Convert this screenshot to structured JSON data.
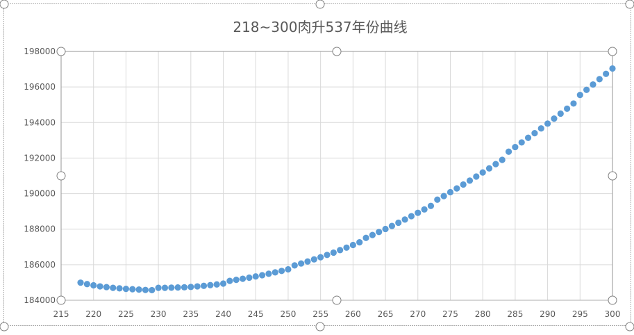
{
  "chart_data": {
    "type": "scatter",
    "title": "218~300肉升537年份曲线",
    "xlabel": "",
    "ylabel": "",
    "xlim": [
      215,
      300
    ],
    "ylim": [
      184000,
      198000
    ],
    "xticks": [
      "215",
      "220",
      "225",
      "230",
      "235",
      "240",
      "245",
      "250",
      "255",
      "260",
      "265",
      "270",
      "275",
      "280",
      "285",
      "290",
      "295",
      "300"
    ],
    "yticks": [
      "184000",
      "186000",
      "188000",
      "190000",
      "192000",
      "194000",
      "196000",
      "198000"
    ],
    "grid": true,
    "legend": "none",
    "marker_color": "#5b9bd5",
    "series": [
      {
        "x": [
          218,
          219,
          220,
          221,
          222,
          223,
          224,
          225,
          226,
          227,
          228,
          229,
          230,
          231,
          232,
          233,
          234,
          235,
          236,
          237,
          238,
          239,
          240,
          241,
          242,
          243,
          244,
          245,
          246,
          247,
          248,
          249,
          250,
          251,
          252,
          253,
          254,
          255,
          256,
          257,
          258,
          259,
          260,
          261,
          262,
          263,
          264,
          265,
          266,
          267,
          268,
          269,
          270,
          271,
          272,
          273,
          274,
          275,
          276,
          277,
          278,
          279,
          280,
          281,
          282,
          283,
          284,
          285,
          286,
          287,
          288,
          289,
          290,
          291,
          292,
          293,
          294,
          295,
          296,
          297,
          298,
          299,
          300
        ],
        "y": [
          184990,
          184910,
          184840,
          184780,
          184740,
          184700,
          184670,
          184640,
          184620,
          184600,
          184580,
          184570,
          184700,
          184700,
          184710,
          184720,
          184730,
          184750,
          184780,
          184810,
          184850,
          184890,
          184940,
          185090,
          185150,
          185210,
          185270,
          185340,
          185410,
          185490,
          185570,
          185650,
          185740,
          185960,
          186070,
          186180,
          186300,
          186420,
          186550,
          186680,
          186820,
          186960,
          187110,
          187260,
          187510,
          187670,
          187840,
          188010,
          188180,
          188360,
          188540,
          188730,
          188920,
          189110,
          189310,
          189660,
          189860,
          190080,
          190290,
          190510,
          190730,
          190960,
          191190,
          191420,
          191660,
          191900,
          192360,
          192620,
          192880,
          193140,
          193400,
          193670,
          193940,
          194220,
          194500,
          194780,
          195070,
          195550,
          195840,
          196140,
          196440,
          196740,
          197040
        ]
      }
    ]
  }
}
